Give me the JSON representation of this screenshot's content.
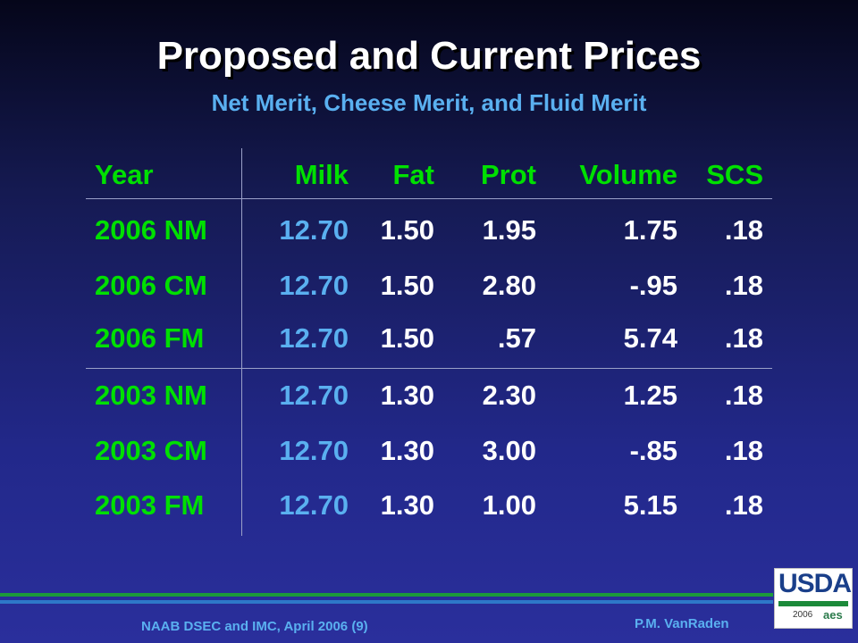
{
  "slide": {
    "title": "Proposed and Current Prices",
    "subtitle": "Net Merit, Cheese Merit, and Fluid Merit"
  },
  "table": {
    "headers": [
      "Year",
      "Milk",
      "Fat",
      "Prot",
      "Volume",
      "SCS"
    ],
    "rows": [
      [
        "2006 NM",
        "12.70",
        "1.50",
        "1.95",
        "1.75",
        ".18"
      ],
      [
        "2006 CM",
        "12.70",
        "1.50",
        "2.80",
        "-.95",
        ".18"
      ],
      [
        "2006 FM",
        "12.70",
        "1.50",
        ".57",
        "5.74",
        ".18"
      ],
      [
        "2003 NM",
        "12.70",
        "1.30",
        "2.30",
        "1.25",
        ".18"
      ],
      [
        "2003 CM",
        "12.70",
        "1.30",
        "3.00",
        "-.85",
        ".18"
      ],
      [
        "2003 FM",
        "12.70",
        "1.30",
        "1.00",
        "5.15",
        ".18"
      ]
    ]
  },
  "footer": {
    "left": "NAAB DSEC and IMC, April 2006 (9)",
    "right": "P.M. VanRaden"
  },
  "logo": {
    "text": "USDA",
    "year": "2006",
    "mark": "aes"
  },
  "colors": {
    "header_green": "#00e000",
    "milk_blue": "#5ab0f0",
    "value_white": "#ffffff",
    "title_white": "#ffffff"
  }
}
